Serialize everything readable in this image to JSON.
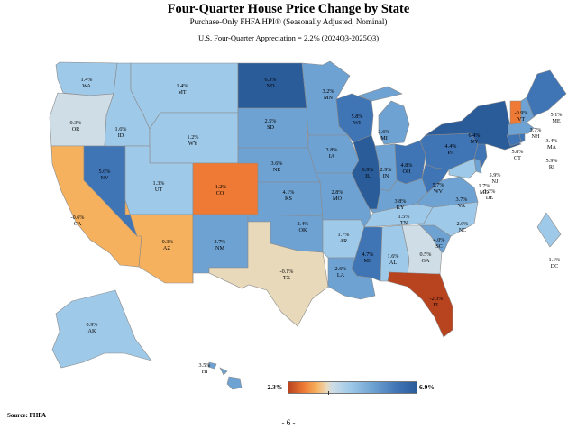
{
  "header": {
    "title": "Four-Quarter House Price Change by State",
    "subtitle": "Purchase-Only FHFA HPI® (Seasonally Adjusted, Nominal)",
    "us_line": "U.S. Four-Quarter Appreciation = 2.2% (2024Q3-2025Q3)"
  },
  "legend": {
    "min_label": "-2.3%",
    "max_label": "6.9%",
    "min_value": -2.3,
    "max_value": 6.9
  },
  "colors": {
    "very_low": "#b8431f",
    "low": "#ee7a35",
    "mid_low": "#f6b15f",
    "neutral": "#e9d9bb",
    "light": "#cfdde6",
    "mid": "#9fc9e8",
    "mid_high": "#6ea2d2",
    "high": "#3f74b5",
    "very_high": "#2b5c9a"
  },
  "states": [
    {
      "code": "WA",
      "value": 1.4,
      "label": "1.4%"
    },
    {
      "code": "OR",
      "value": 0.3,
      "label": "0.3%"
    },
    {
      "code": "CA",
      "value": -0.6,
      "label": "-0.6%"
    },
    {
      "code": "NV",
      "value": 5.0,
      "label": "5.0%"
    },
    {
      "code": "ID",
      "value": 1.6,
      "label": "1.6%"
    },
    {
      "code": "MT",
      "value": 1.4,
      "label": "1.4%"
    },
    {
      "code": "WY",
      "value": 1.2,
      "label": "1.2%"
    },
    {
      "code": "UT",
      "value": 1.3,
      "label": "1.3%"
    },
    {
      "code": "AZ",
      "value": -0.3,
      "label": "-0.3%"
    },
    {
      "code": "CO",
      "value": -1.2,
      "label": "-1.2%"
    },
    {
      "code": "NM",
      "value": 2.7,
      "label": "2.7%"
    },
    {
      "code": "ND",
      "value": 6.3,
      "label": "6.3%"
    },
    {
      "code": "SD",
      "value": 2.5,
      "label": "2.5%"
    },
    {
      "code": "NE",
      "value": 3.6,
      "label": "3.6%"
    },
    {
      "code": "KS",
      "value": 4.1,
      "label": "4.1%"
    },
    {
      "code": "OK",
      "value": 2.4,
      "label": "2.4%"
    },
    {
      "code": "TX",
      "value": -0.1,
      "label": "-0.1%"
    },
    {
      "code": "MN",
      "value": 3.2,
      "label": "3.2%"
    },
    {
      "code": "IA",
      "value": 3.8,
      "label": "3.8%"
    },
    {
      "code": "MO",
      "value": 2.8,
      "label": "2.8%"
    },
    {
      "code": "AR",
      "value": 1.7,
      "label": "1.7%"
    },
    {
      "code": "LA",
      "value": 2.6,
      "label": "2.6%"
    },
    {
      "code": "WI",
      "value": 5.8,
      "label": "5.8%"
    },
    {
      "code": "IL",
      "value": 6.9,
      "label": "6.9%"
    },
    {
      "code": "MI",
      "value": 3.6,
      "label": "3.6%"
    },
    {
      "code": "IN",
      "value": 2.9,
      "label": "2.9%"
    },
    {
      "code": "OH",
      "value": 4.8,
      "label": "4.8%"
    },
    {
      "code": "KY",
      "value": 3.8,
      "label": "3.8%"
    },
    {
      "code": "TN",
      "value": 1.5,
      "label": "1.5%"
    },
    {
      "code": "MS",
      "value": 4.7,
      "label": "4.7%"
    },
    {
      "code": "AL",
      "value": 1.6,
      "label": "1.6%"
    },
    {
      "code": "GA",
      "value": 0.5,
      "label": "0.5%"
    },
    {
      "code": "FL",
      "value": -2.3,
      "label": "-2.3%"
    },
    {
      "code": "SC",
      "value": 4.0,
      "label": "4.0%"
    },
    {
      "code": "NC",
      "value": 2.0,
      "label": "2.0%"
    },
    {
      "code": "VA",
      "value": 3.7,
      "label": "3.7%"
    },
    {
      "code": "WV",
      "value": 5.7,
      "label": "5.7%"
    },
    {
      "code": "PA",
      "value": 4.4,
      "label": "4.4%"
    },
    {
      "code": "NY",
      "value": 6.4,
      "label": "6.4%"
    },
    {
      "code": "VT",
      "value": -0.9,
      "label": "-0.9%"
    },
    {
      "code": "NH",
      "value": 3.7,
      "label": "3.7%"
    },
    {
      "code": "ME",
      "value": 5.1,
      "label": "5.1%"
    },
    {
      "code": "MA",
      "value": 3.4,
      "label": "3.4%"
    },
    {
      "code": "RI",
      "value": 5.9,
      "label": "5.9%"
    },
    {
      "code": "CT",
      "value": 5.8,
      "label": "5.8%"
    },
    {
      "code": "NJ",
      "value": 5.9,
      "label": "5.9%"
    },
    {
      "code": "DE",
      "value": 3.3,
      "label": "3.3%"
    },
    {
      "code": "MD",
      "value": 1.7,
      "label": "1.7%"
    },
    {
      "code": "DC",
      "value": 1.1,
      "label": "1.1%"
    },
    {
      "code": "AK",
      "value": 0.9,
      "label": "0.9%"
    },
    {
      "code": "HI",
      "value": 3.5,
      "label": "3.5%"
    }
  ],
  "footer": {
    "source": "Source:  FHFA",
    "page": "- 6 -"
  }
}
